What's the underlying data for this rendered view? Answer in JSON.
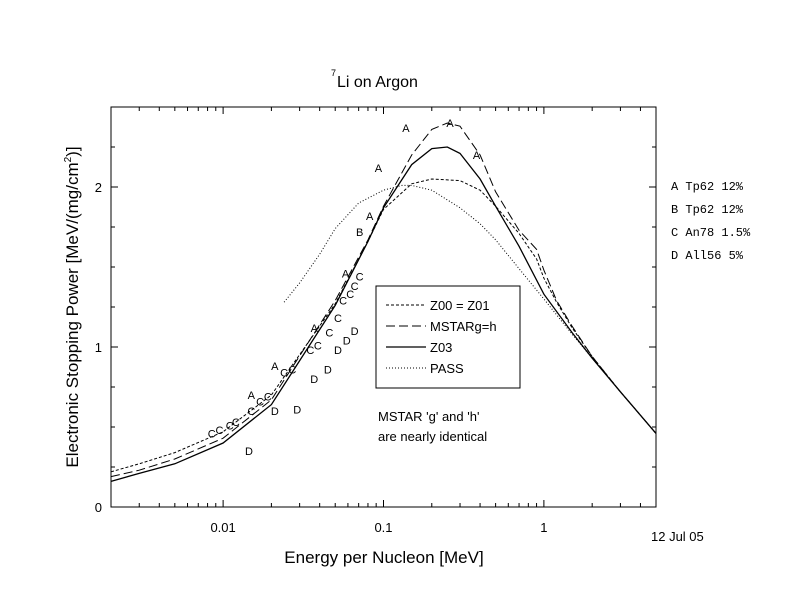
{
  "chart_data": {
    "type": "line",
    "title": "Li on Argon",
    "title_superscript": "7",
    "xlabel": "Energy per Nucleon [MeV]",
    "ylabel": "Electronic Stopping Power [MeV/(mg/cm",
    "ylabel_sup": "2",
    "ylabel_close": ")]",
    "xscale": "log",
    "xlim": [
      0.002,
      5
    ],
    "ylim": [
      0,
      2.5
    ],
    "xticks": [
      {
        "v": 0.01,
        "label": "0.01"
      },
      {
        "v": 0.1,
        "label": "0.1"
      },
      {
        "v": 1,
        "label": "1"
      }
    ],
    "yticks": [
      {
        "v": 0,
        "label": "0"
      },
      {
        "v": 1,
        "label": "1"
      },
      {
        "v": 2,
        "label": "2"
      }
    ],
    "date": "12 Jul 05",
    "annotation": [
      "MSTAR 'g' and 'h'",
      "are nearly identical"
    ],
    "legend_position": "center",
    "series": [
      {
        "name": "Z00 = Z01",
        "dash": "3,2",
        "width": 1,
        "color": "#000000",
        "x": [
          0.002,
          0.003,
          0.005,
          0.01,
          0.02,
          0.05,
          0.08,
          0.1,
          0.15,
          0.2,
          0.3,
          0.4,
          0.5,
          0.7,
          0.9,
          1.0,
          1.2,
          1.5,
          2,
          3,
          5
        ],
        "y": [
          0.22,
          0.27,
          0.34,
          0.47,
          0.7,
          1.27,
          1.66,
          1.86,
          2.02,
          2.05,
          2.04,
          1.98,
          1.88,
          1.71,
          1.55,
          1.43,
          1.28,
          1.12,
          0.94,
          0.72,
          0.46
        ]
      },
      {
        "name": "MSTARg=h",
        "dash": "9,4",
        "width": 1,
        "color": "#000000",
        "x": [
          0.002,
          0.003,
          0.005,
          0.01,
          0.02,
          0.05,
          0.08,
          0.1,
          0.15,
          0.2,
          0.25,
          0.3,
          0.4,
          0.5,
          0.7,
          0.9,
          1.0,
          1.2,
          1.5,
          2,
          3,
          5
        ],
        "y": [
          0.19,
          0.23,
          0.3,
          0.43,
          0.67,
          1.29,
          1.67,
          1.88,
          2.2,
          2.36,
          2.4,
          2.38,
          2.2,
          1.97,
          1.73,
          1.61,
          1.48,
          1.29,
          1.13,
          0.94,
          0.72,
          0.46
        ]
      },
      {
        "name": "Z03",
        "dash": "",
        "width": 1.3,
        "color": "#000000",
        "x": [
          0.002,
          0.003,
          0.005,
          0.01,
          0.02,
          0.05,
          0.08,
          0.1,
          0.15,
          0.2,
          0.25,
          0.3,
          0.4,
          0.5,
          0.7,
          1.0,
          1.5,
          2,
          3,
          5
        ],
        "y": [
          0.16,
          0.21,
          0.27,
          0.4,
          0.64,
          1.26,
          1.66,
          1.87,
          2.14,
          2.24,
          2.25,
          2.21,
          2.05,
          1.88,
          1.63,
          1.33,
          1.09,
          0.93,
          0.72,
          0.46
        ]
      },
      {
        "name": "PASS",
        "dash": "1,2",
        "width": 1,
        "color": "#000000",
        "x": [
          0.024,
          0.03,
          0.04,
          0.05,
          0.07,
          0.1,
          0.13,
          0.15,
          0.2,
          0.3,
          0.4,
          0.5,
          0.7,
          1.0,
          1.5,
          2,
          3,
          5
        ],
        "y": [
          1.28,
          1.4,
          1.58,
          1.74,
          1.9,
          1.98,
          2.01,
          2.01,
          1.98,
          1.87,
          1.77,
          1.67,
          1.49,
          1.3,
          1.08,
          0.93,
          0.72,
          0.46
        ]
      }
    ],
    "points": [
      {
        "label": "A",
        "x": [
          0.015,
          0.021,
          0.037,
          0.058,
          0.093,
          0.138,
          0.26,
          0.38
        ],
        "y": [
          0.7,
          0.88,
          1.12,
          1.46,
          2.12,
          2.37,
          2.4,
          2.2
        ]
      },
      {
        "label": "A",
        "x": [
          0.082
        ],
        "y": [
          1.82
        ]
      },
      {
        "label": "B",
        "x": [
          0.071
        ],
        "y": [
          1.72
        ]
      },
      {
        "label": "C",
        "x": [
          0.0085,
          0.0095,
          0.011,
          0.012,
          0.015,
          0.017,
          0.019,
          0.024,
          0.027,
          0.035,
          0.039,
          0.046,
          0.052,
          0.056,
          0.062,
          0.066,
          0.071
        ],
        "y": [
          0.46,
          0.48,
          0.51,
          0.53,
          0.6,
          0.66,
          0.69,
          0.84,
          0.86,
          0.98,
          1.01,
          1.09,
          1.18,
          1.29,
          1.33,
          1.38,
          1.44
        ]
      },
      {
        "label": "D",
        "x": [
          0.0145,
          0.021,
          0.029,
          0.037,
          0.045,
          0.052,
          0.059,
          0.066
        ],
        "y": [
          0.35,
          0.6,
          0.61,
          0.8,
          0.86,
          0.98,
          1.04,
          1.1
        ]
      }
    ],
    "side_legend": [
      {
        "label": "A",
        "text": "Tp62 12%"
      },
      {
        "label": "B",
        "text": "Tp62 12%"
      },
      {
        "label": "C",
        "text": "An78 1.5%"
      },
      {
        "label": "D",
        "text": "All56 5%"
      }
    ]
  }
}
